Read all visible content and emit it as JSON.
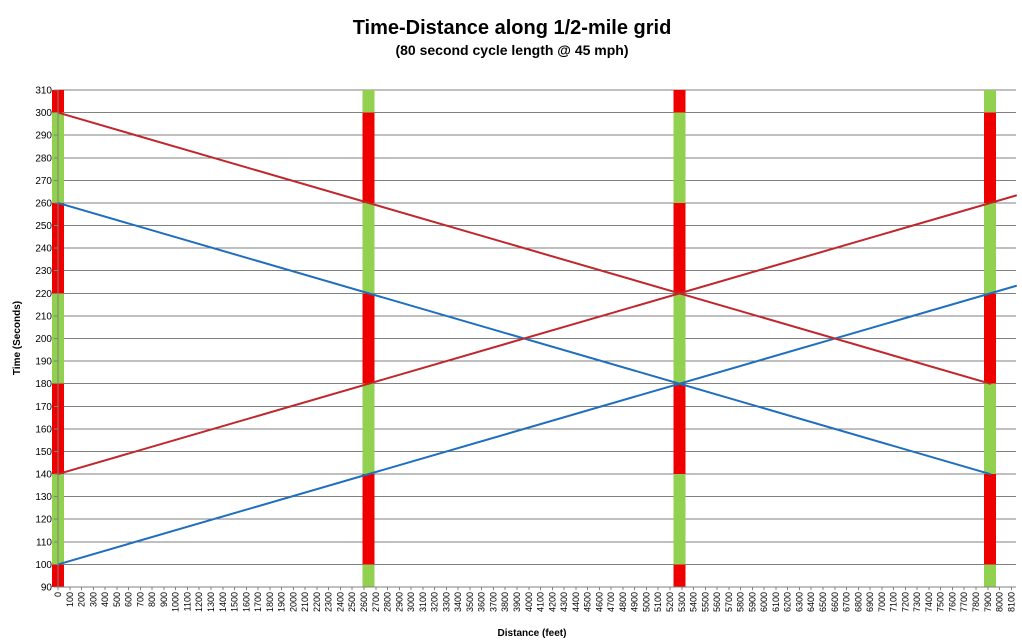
{
  "chart_data": {
    "type": "line",
    "title": "Time-Distance along 1/2-mile grid",
    "subtitle": "(80 second cycle length @ 45 mph)",
    "xlabel": "Distance (feet)",
    "ylabel": "Time (Seconds)",
    "xlim": [
      0,
      8140
    ],
    "ylim": [
      90,
      310
    ],
    "y_ticks": [
      90,
      100,
      110,
      120,
      130,
      140,
      150,
      160,
      170,
      180,
      190,
      200,
      210,
      220,
      230,
      240,
      250,
      260,
      270,
      280,
      290,
      300,
      310
    ],
    "x_tick_start": 0,
    "x_tick_step": 100,
    "x_tick_count": 82,
    "grid": "horizontal",
    "legend": "none",
    "signals": [
      {
        "distance": 0,
        "phases": [
          {
            "from": 90,
            "to": 100,
            "state": "red"
          },
          {
            "from": 100,
            "to": 140,
            "state": "green"
          },
          {
            "from": 140,
            "to": 180,
            "state": "red"
          },
          {
            "from": 180,
            "to": 220,
            "state": "green"
          },
          {
            "from": 220,
            "to": 260,
            "state": "red"
          },
          {
            "from": 260,
            "to": 300,
            "state": "green"
          },
          {
            "from": 300,
            "to": 310,
            "state": "red"
          }
        ]
      },
      {
        "distance": 2640,
        "phases": [
          {
            "from": 90,
            "to": 100,
            "state": "green"
          },
          {
            "from": 100,
            "to": 140,
            "state": "red"
          },
          {
            "from": 140,
            "to": 180,
            "state": "green"
          },
          {
            "from": 180,
            "to": 220,
            "state": "red"
          },
          {
            "from": 220,
            "to": 260,
            "state": "green"
          },
          {
            "from": 260,
            "to": 300,
            "state": "red"
          },
          {
            "from": 300,
            "to": 310,
            "state": "green"
          }
        ]
      },
      {
        "distance": 5280,
        "phases": [
          {
            "from": 90,
            "to": 100,
            "state": "red"
          },
          {
            "from": 100,
            "to": 140,
            "state": "green"
          },
          {
            "from": 140,
            "to": 180,
            "state": "red"
          },
          {
            "from": 180,
            "to": 220,
            "state": "green"
          },
          {
            "from": 220,
            "to": 260,
            "state": "red"
          },
          {
            "from": 260,
            "to": 300,
            "state": "green"
          },
          {
            "from": 300,
            "to": 310,
            "state": "red"
          }
        ]
      },
      {
        "distance": 7920,
        "phases": [
          {
            "from": 90,
            "to": 100,
            "state": "green"
          },
          {
            "from": 100,
            "to": 140,
            "state": "red"
          },
          {
            "from": 140,
            "to": 180,
            "state": "green"
          },
          {
            "from": 180,
            "to": 220,
            "state": "red"
          },
          {
            "from": 220,
            "to": 260,
            "state": "green"
          },
          {
            "from": 260,
            "to": 300,
            "state": "red"
          },
          {
            "from": 300,
            "to": 310,
            "state": "green"
          }
        ]
      }
    ],
    "series": [
      {
        "color": "#1f6fbf",
        "x": [
          0,
          8140
        ],
        "y": [
          100,
          223.3
        ]
      },
      {
        "color": "#1f6fbf",
        "x": [
          0,
          7920
        ],
        "y": [
          260,
          140
        ]
      },
      {
        "color": "#c0272d",
        "x": [
          0,
          8140
        ],
        "y": [
          140,
          263.3
        ]
      },
      {
        "color": "#c0272d",
        "x": [
          0,
          7920
        ],
        "y": [
          300,
          180
        ]
      }
    ],
    "colors": {
      "signal_red": "#ee0000",
      "signal_green": "#92d050",
      "blue": "#1f6fbf",
      "red": "#c0272d"
    }
  }
}
